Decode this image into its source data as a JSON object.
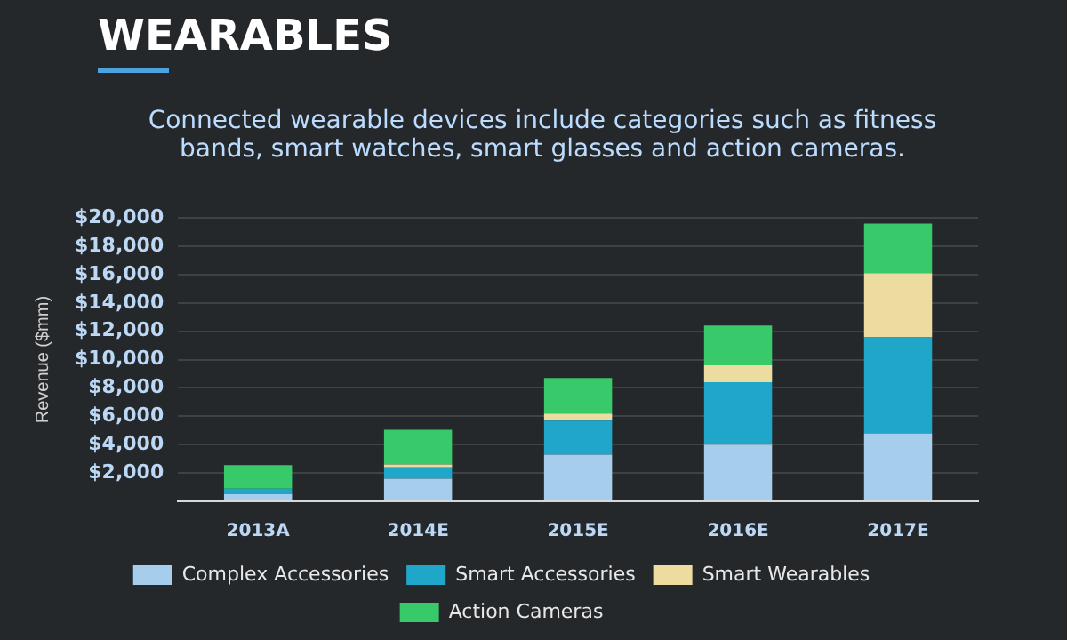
{
  "chart_data": {
    "type": "bar",
    "title": "WEARABLES",
    "subtitle": "Connected wearable devices include categories such as fitness bands, smart watches, smart glasses and action cameras.",
    "ylabel": "Revenue ($mm)",
    "categories": [
      "2013A",
      "2014E",
      "2015E",
      "2016E",
      "2017E"
    ],
    "series": [
      {
        "name": "Complex Accessories",
        "color": "#a6cdeb",
        "values": [
          500,
          1600,
          3300,
          4000,
          4800
        ]
      },
      {
        "name": "Smart Accessories",
        "color": "#1fa6c9",
        "values": [
          400,
          800,
          2400,
          4400,
          6800
        ]
      },
      {
        "name": "Smart Wearables",
        "color": "#ecdca0",
        "values": [
          0,
          200,
          500,
          1200,
          4500
        ]
      },
      {
        "name": "Action Cameras",
        "color": "#38c96a",
        "values": [
          1650,
          2450,
          2500,
          2800,
          3500
        ]
      }
    ],
    "stacked": true,
    "ylim": [
      0,
      20000
    ],
    "yticks": [
      {
        "value": 0,
        "label": null
      },
      {
        "value": 2000,
        "label": "$2,000"
      },
      {
        "value": 4000,
        "label": "$4,000"
      },
      {
        "value": 6000,
        "label": "$6,000"
      },
      {
        "value": 8000,
        "label": "$8,000"
      },
      {
        "value": 10000,
        "label": "$10,000"
      },
      {
        "value": 12000,
        "label": "$12,000"
      },
      {
        "value": 14000,
        "label": "$14,000"
      },
      {
        "value": 16000,
        "label": "$16,000"
      },
      {
        "value": 18000,
        "label": "$18,000"
      },
      {
        "value": 20000,
        "label": "$20,000"
      }
    ],
    "grid": "y",
    "legend": "bottom"
  }
}
